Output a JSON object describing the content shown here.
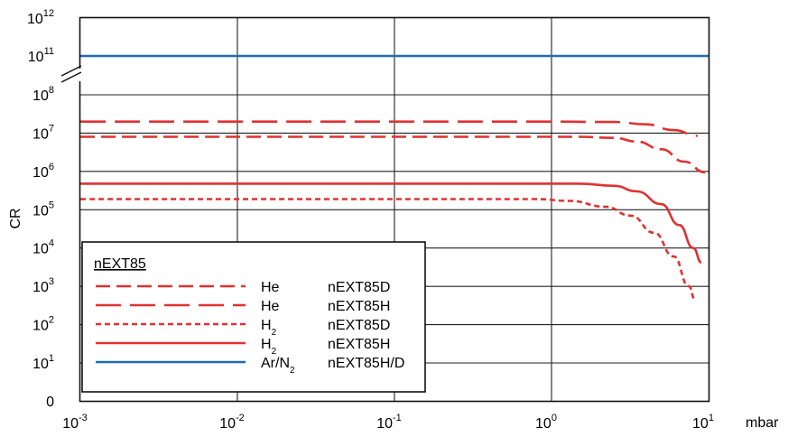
{
  "chart_data": {
    "type": "line",
    "ylabel": "CR",
    "xunit": "mbar",
    "x_scale": "log",
    "xlim": [
      0.001,
      10
    ],
    "x_ticks": [
      {
        "value": 0.001,
        "base": "10",
        "exp": "-3"
      },
      {
        "value": 0.01,
        "base": "10",
        "exp": "-2"
      },
      {
        "value": 0.1,
        "base": "10",
        "exp": "-1"
      },
      {
        "value": 1,
        "base": "10",
        "exp": "0"
      },
      {
        "value": 10,
        "base": "10",
        "exp": "1"
      }
    ],
    "y_scale": "log (broken axis between 10^8 and 10^11)",
    "y_ticks": [
      {
        "value": 0,
        "base": "0",
        "exp": ""
      },
      {
        "value": 10,
        "base": "10",
        "exp": "1"
      },
      {
        "value": 100,
        "base": "10",
        "exp": "2"
      },
      {
        "value": 1000,
        "base": "10",
        "exp": "3"
      },
      {
        "value": 10000,
        "base": "10",
        "exp": "4"
      },
      {
        "value": 100000,
        "base": "10",
        "exp": "5"
      },
      {
        "value": 1000000,
        "base": "10",
        "exp": "6"
      },
      {
        "value": 10000000,
        "base": "10",
        "exp": "7"
      },
      {
        "value": 100000000,
        "base": "10",
        "exp": "8"
      },
      {
        "value": 100000000000,
        "base": "10",
        "exp": "11"
      },
      {
        "value": 1000000000000,
        "base": "10",
        "exp": "12"
      }
    ],
    "grid": true,
    "legend": {
      "title": "nEXT85",
      "placement": "bottom-left",
      "entries": [
        {
          "gas": "He",
          "gas_sub": "",
          "gas_suffix": "",
          "model": "nEXT85D",
          "style": "medium-dash",
          "color": "#e03131"
        },
        {
          "gas": "He",
          "gas_sub": "",
          "gas_suffix": "",
          "model": "nEXT85H",
          "style": "long-dash",
          "color": "#e03131"
        },
        {
          "gas": "H",
          "gas_sub": "2",
          "gas_suffix": "",
          "model": "nEXT85D",
          "style": "short-dash",
          "color": "#e03131"
        },
        {
          "gas": "H",
          "gas_sub": "2",
          "gas_suffix": "",
          "model": "nEXT85H",
          "style": "solid",
          "color": "#e03131"
        },
        {
          "gas": "Ar/N",
          "gas_sub": "2",
          "gas_suffix": "",
          "model": "nEXT85H/D",
          "style": "solid",
          "color": "#1f6fad"
        }
      ]
    },
    "series": [
      {
        "name": "He nEXT85H",
        "style": "long-dash",
        "color": "#e03131",
        "points": [
          [
            0.001,
            20000000
          ],
          [
            1,
            20000000
          ],
          [
            2.5,
            19500000
          ],
          [
            4,
            17000000
          ],
          [
            6,
            12000000
          ],
          [
            8.5,
            8500000
          ]
        ]
      },
      {
        "name": "He nEXT85D",
        "style": "medium-dash",
        "color": "#e03131",
        "points": [
          [
            0.001,
            8000000
          ],
          [
            1.5,
            8000000
          ],
          [
            2.5,
            7500000
          ],
          [
            3.5,
            6000000
          ],
          [
            5,
            3800000
          ],
          [
            7,
            1800000
          ],
          [
            9.5,
            950000
          ]
        ]
      },
      {
        "name": "H2 nEXT85H",
        "style": "solid",
        "color": "#e03131",
        "points": [
          [
            0.001,
            480000
          ],
          [
            1.5,
            480000
          ],
          [
            2.5,
            420000
          ],
          [
            3.5,
            300000
          ],
          [
            5,
            140000
          ],
          [
            6.5,
            40000
          ],
          [
            8,
            10000
          ],
          [
            9,
            4200
          ]
        ]
      },
      {
        "name": "H2 nEXT85D",
        "style": "short-dash",
        "color": "#e03131",
        "points": [
          [
            0.001,
            190000
          ],
          [
            0.8,
            190000
          ],
          [
            1.3,
            170000
          ],
          [
            2.2,
            120000
          ],
          [
            3.2,
            70000
          ],
          [
            4.5,
            25000
          ],
          [
            6,
            6000
          ],
          [
            7.5,
            1000
          ],
          [
            8.2,
            450
          ]
        ]
      },
      {
        "name": "Ar/N2 nEXT85H/D",
        "style": "solid",
        "color": "#1f6fad",
        "points": [
          [
            0.001,
            100000000000
          ],
          [
            10,
            100000000000
          ]
        ]
      }
    ]
  }
}
